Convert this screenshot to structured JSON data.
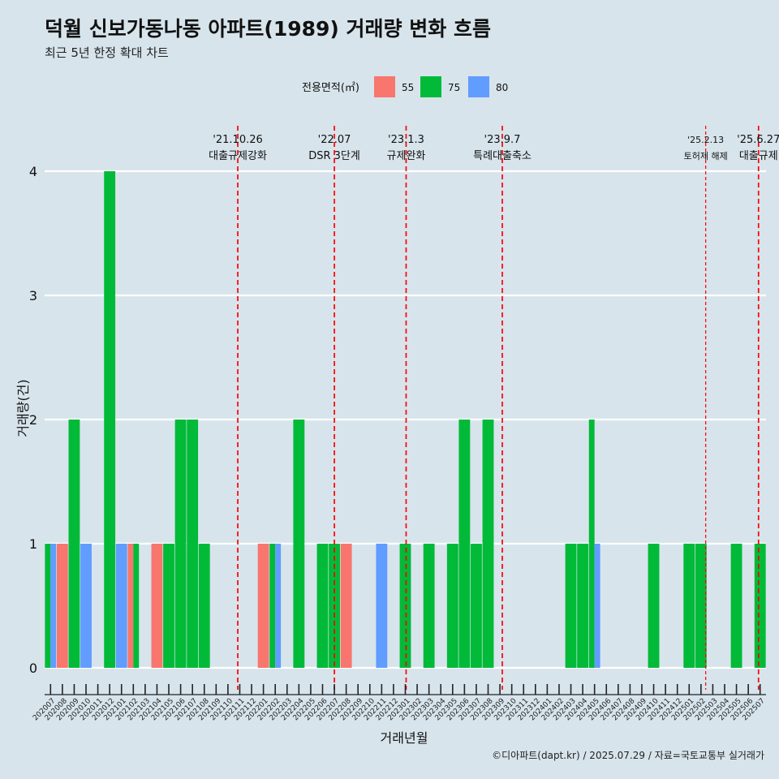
{
  "title": "덕월 신보가동나동 아파트(1989) 거래량 변화 흐름",
  "subtitle": "최근 5년 한정 확대 차트",
  "caption": "©디아파트(dapt.kr) / 2025.07.29 / 자료=국토교통부 실거래가",
  "colors": {
    "background": "#d7e4ec",
    "55": "#f8766d",
    "75": "#00ba38",
    "80": "#619cff",
    "event_line": "#ff0000"
  },
  "chart_data": {
    "type": "bar",
    "stacked": false,
    "xlabel": "거래년월",
    "ylabel": "거래량(건)",
    "ylim": [
      0,
      4
    ],
    "yticks": [
      0,
      1,
      2,
      3,
      4
    ],
    "grid": true,
    "legend": {
      "title": "전용면적(㎡)",
      "position": "top",
      "entries": [
        "55",
        "75",
        "80"
      ]
    },
    "categories": [
      "202007",
      "202008",
      "202009",
      "202010",
      "202011",
      "202012",
      "202101",
      "202102",
      "202103",
      "202104",
      "202105",
      "202106",
      "202107",
      "202108",
      "202109",
      "202110",
      "202111",
      "202112",
      "202201",
      "202202",
      "202203",
      "202204",
      "202205",
      "202206",
      "202207",
      "202208",
      "202209",
      "202210",
      "202211",
      "202212",
      "202301",
      "202302",
      "202303",
      "202304",
      "202305",
      "202306",
      "202307",
      "202308",
      "202309",
      "202310",
      "202311",
      "202312",
      "202401",
      "202402",
      "202403",
      "202404",
      "202405",
      "202406",
      "202407",
      "202408",
      "202409",
      "202410",
      "202411",
      "202412",
      "202501",
      "202502",
      "202503",
      "202504",
      "202505",
      "202506",
      "202507"
    ],
    "bars": [
      {
        "month": "202007",
        "values": {
          "75": 1,
          "80": 1
        }
      },
      {
        "month": "202008",
        "values": {
          "55": 1
        }
      },
      {
        "month": "202009",
        "values": {
          "75": 2
        }
      },
      {
        "month": "202010",
        "values": {
          "80": 1
        }
      },
      {
        "month": "202012",
        "values": {
          "75": 4
        }
      },
      {
        "month": "202101",
        "values": {
          "80": 1
        }
      },
      {
        "month": "202102",
        "values": {
          "55": 1,
          "75": 1
        }
      },
      {
        "month": "202104",
        "values": {
          "55": 1
        }
      },
      {
        "month": "202105",
        "values": {
          "75": 1
        }
      },
      {
        "month": "202106",
        "values": {
          "75": 2
        }
      },
      {
        "month": "202107",
        "values": {
          "75": 2
        }
      },
      {
        "month": "202108",
        "values": {
          "75": 1
        }
      },
      {
        "month": "202201",
        "values": {
          "55": 1
        }
      },
      {
        "month": "202202",
        "values": {
          "75": 1,
          "80": 1
        }
      },
      {
        "month": "202204",
        "values": {
          "75": 2
        }
      },
      {
        "month": "202206",
        "values": {
          "75": 1
        }
      },
      {
        "month": "202207",
        "values": {
          "75": 1
        }
      },
      {
        "month": "202208",
        "values": {
          "55": 1
        }
      },
      {
        "month": "202211",
        "values": {
          "80": 1
        }
      },
      {
        "month": "202301",
        "values": {
          "75": 1
        }
      },
      {
        "month": "202303",
        "values": {
          "75": 1
        }
      },
      {
        "month": "202305",
        "values": {
          "75": 1
        }
      },
      {
        "month": "202306",
        "values": {
          "75": 2
        }
      },
      {
        "month": "202307",
        "values": {
          "75": 1
        }
      },
      {
        "month": "202308",
        "values": {
          "75": 2
        }
      },
      {
        "month": "202403",
        "values": {
          "75": 1
        }
      },
      {
        "month": "202404",
        "values": {
          "75": 1
        }
      },
      {
        "month": "202405",
        "values": {
          "75": 2,
          "80": 1
        }
      },
      {
        "month": "202410",
        "values": {
          "75": 1
        }
      },
      {
        "month": "202501",
        "values": {
          "75": 1
        }
      },
      {
        "month": "202502",
        "values": {
          "75": 1
        }
      },
      {
        "month": "202505",
        "values": {
          "75": 1
        }
      },
      {
        "month": "202507",
        "values": {
          "75": 1
        }
      }
    ],
    "events": [
      {
        "date": "2021-10-26",
        "date_label": "'21.10.26",
        "label": "대출규제강화"
      },
      {
        "date": "2022-07",
        "date_label": "'22.07",
        "label": "DSR 3단계"
      },
      {
        "date": "2023-01-03",
        "date_label": "'23.1.3",
        "label": "규제완화"
      },
      {
        "date": "2023-09-07",
        "date_label": "'23.9.7",
        "label": "특례대출축소"
      },
      {
        "date": "2025-02-13",
        "date_label": "'25.2.13",
        "label": "토허제 해제"
      },
      {
        "date": "2025-06-27",
        "date_label": "'25.6.27",
        "label": "대출규제"
      }
    ]
  }
}
